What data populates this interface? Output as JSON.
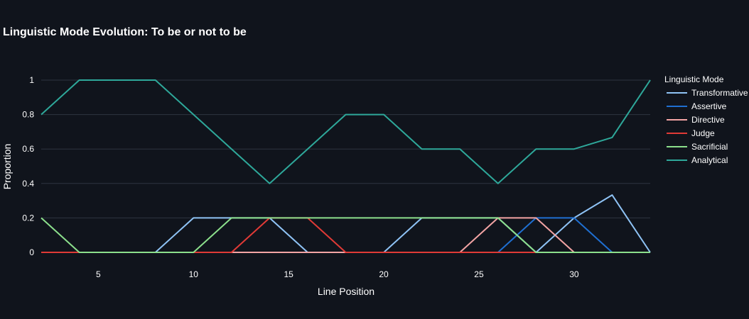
{
  "chart_data": {
    "type": "line",
    "title": "Linguistic Mode Evolution: To be or not to be",
    "xlabel": "Line Position",
    "ylabel": "Proportion",
    "xlim": [
      2,
      34
    ],
    "ylim": [
      0,
      1
    ],
    "xticks": [
      5,
      10,
      15,
      20,
      25,
      30
    ],
    "yticks": [
      0,
      0.2,
      0.4,
      0.6,
      0.8,
      1
    ],
    "ytick_labels": [
      "0",
      "0.2",
      "0.4",
      "0.6",
      "0.8",
      "1"
    ],
    "grid": true,
    "legend_title": "Linguistic Mode",
    "legend_position": "right",
    "x": [
      2,
      4,
      6,
      8,
      10,
      12,
      14,
      16,
      18,
      20,
      22,
      24,
      26,
      28,
      30,
      32,
      34
    ],
    "series": [
      {
        "name": "Transformative",
        "color": "#8fc3f5",
        "values": [
          0,
          0,
          0,
          0,
          0.2,
          0.2,
          0.2,
          0,
          0,
          0,
          0.2,
          0.2,
          0.2,
          0,
          0.2,
          0.333,
          0
        ]
      },
      {
        "name": "Assertive",
        "color": "#1f6fd1",
        "values": [
          0,
          0,
          0,
          0,
          0,
          0,
          0,
          0,
          0,
          0,
          0,
          0,
          0,
          0.2,
          0.2,
          0,
          0
        ]
      },
      {
        "name": "Directive",
        "color": "#f3a4a4",
        "values": [
          0,
          0,
          0,
          0,
          0,
          0,
          0,
          0,
          0,
          0,
          0,
          0,
          0.2,
          0.2,
          0,
          0,
          0
        ]
      },
      {
        "name": "Judge",
        "color": "#e03a36",
        "values": [
          0,
          0,
          0,
          0,
          0,
          0,
          0.2,
          0.2,
          0,
          0,
          0,
          0,
          0,
          0,
          0,
          0,
          0
        ]
      },
      {
        "name": "Sacrificial",
        "color": "#8ce08c",
        "values": [
          0.2,
          0,
          0,
          0,
          0,
          0.2,
          0.2,
          0.2,
          0.2,
          0.2,
          0.2,
          0.2,
          0.2,
          0,
          0,
          0,
          0
        ]
      },
      {
        "name": "Analytical",
        "color": "#2ea89a",
        "values": [
          0.8,
          1,
          1,
          1,
          0.8,
          0.6,
          0.4,
          0.6,
          0.8,
          0.8,
          0.6,
          0.6,
          0.4,
          0.6,
          0.6,
          0.667,
          1
        ]
      }
    ]
  }
}
